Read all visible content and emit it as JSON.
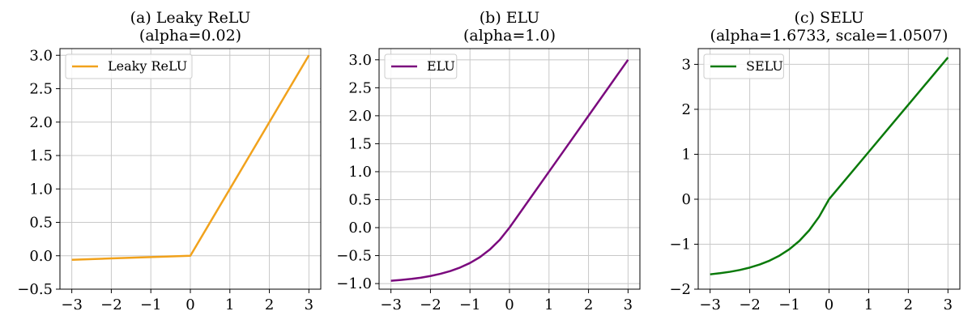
{
  "chart_data": [
    {
      "type": "line",
      "title": "(a) Leaky ReLU",
      "subtitle": "(alpha=0.02)",
      "xlabel": "",
      "ylabel": "",
      "xlim": [
        -3.3,
        3.3
      ],
      "ylim": [
        -0.5,
        3.1
      ],
      "xticks": [
        -3,
        -2,
        -1,
        0,
        1,
        2,
        3
      ],
      "yticks": [
        -0.5,
        0.0,
        0.5,
        1.0,
        1.5,
        2.0,
        2.5,
        3.0
      ],
      "ytick_labels": [
        "−0.5",
        "0.0",
        "0.5",
        "1.0",
        "1.5",
        "2.0",
        "2.5",
        "3.0"
      ],
      "grid": true,
      "legend": "top-left",
      "series": [
        {
          "name": "Leaky ReLU",
          "color": "#f1a21c",
          "x": [
            -3,
            -2,
            -1,
            0,
            1,
            2,
            3
          ],
          "y": [
            -0.06,
            -0.04,
            -0.02,
            0,
            1,
            2,
            3
          ]
        }
      ]
    },
    {
      "type": "line",
      "title": "(b) ELU",
      "subtitle": "(alpha=1.0)",
      "xlabel": "",
      "ylabel": "",
      "xlim": [
        -3.3,
        3.3
      ],
      "ylim": [
        -1.1,
        3.2
      ],
      "xticks": [
        -3,
        -2,
        -1,
        0,
        1,
        2,
        3
      ],
      "yticks": [
        -1.0,
        -0.5,
        0.0,
        0.5,
        1.0,
        1.5,
        2.0,
        2.5,
        3.0
      ],
      "ytick_labels": [
        "−1.0",
        "−0.5",
        "0.0",
        "0.5",
        "1.0",
        "1.5",
        "2.0",
        "2.5",
        "3.0"
      ],
      "grid": true,
      "legend": "top-left",
      "series": [
        {
          "name": "ELU",
          "color": "#7b0a7e",
          "x": [
            -3,
            -2.75,
            -2.5,
            -2.25,
            -2,
            -1.75,
            -1.5,
            -1.25,
            -1,
            -0.75,
            -0.5,
            -0.25,
            0,
            0.5,
            1,
            1.5,
            2,
            2.5,
            3
          ],
          "y": [
            -0.95,
            -0.936,
            -0.918,
            -0.895,
            -0.865,
            -0.826,
            -0.777,
            -0.713,
            -0.632,
            -0.528,
            -0.393,
            -0.221,
            0,
            0.5,
            1,
            1.5,
            2,
            2.5,
            3
          ]
        }
      ]
    },
    {
      "type": "line",
      "title": "(c) SELU",
      "subtitle": "(alpha=1.6733, scale=1.0507)",
      "xlabel": "",
      "ylabel": "",
      "xlim": [
        -3.3,
        3.3
      ],
      "ylim": [
        -2.0,
        3.35
      ],
      "xticks": [
        -3,
        -2,
        -1,
        0,
        1,
        2,
        3
      ],
      "yticks": [
        -2,
        -1,
        0,
        1,
        2,
        3
      ],
      "ytick_labels": [
        "−2",
        "−1",
        "0",
        "1",
        "2",
        "3"
      ],
      "grid": true,
      "legend": "top-left",
      "series": [
        {
          "name": "SELU",
          "color": "#0a7a0a",
          "x": [
            -3,
            -2.75,
            -2.5,
            -2.25,
            -2,
            -1.75,
            -1.5,
            -1.25,
            -1,
            -0.75,
            -0.5,
            -0.25,
            0,
            0.5,
            1,
            1.5,
            2,
            2.5,
            3
          ],
          "y": [
            -1.67,
            -1.645,
            -1.614,
            -1.573,
            -1.52,
            -1.452,
            -1.366,
            -1.254,
            -1.111,
            -0.928,
            -0.692,
            -0.389,
            0,
            0.525,
            1.051,
            1.576,
            2.101,
            2.627,
            3.152
          ]
        }
      ]
    }
  ]
}
